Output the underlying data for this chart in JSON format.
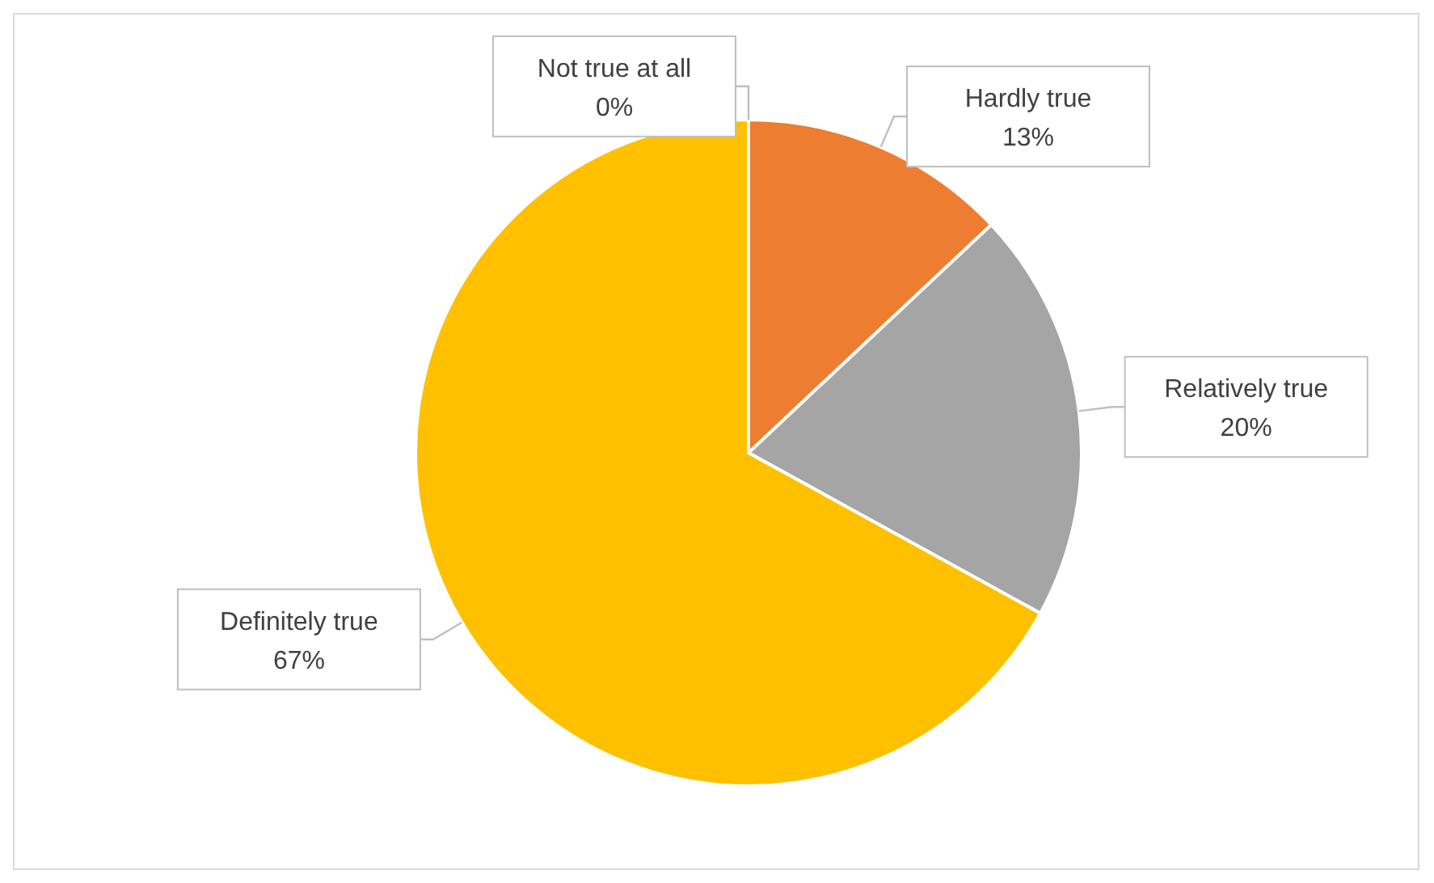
{
  "chart_data": {
    "type": "pie",
    "categories": [
      "Not true at all",
      "Hardly true",
      "Relatively true",
      "Definitely true"
    ],
    "values": [
      0,
      13,
      20,
      67
    ],
    "colors": [
      "#4472c4",
      "#ed7d31",
      "#a5a5a5",
      "#ffc000"
    ],
    "value_labels": [
      "0%",
      "13%",
      "20%",
      "67%"
    ]
  }
}
